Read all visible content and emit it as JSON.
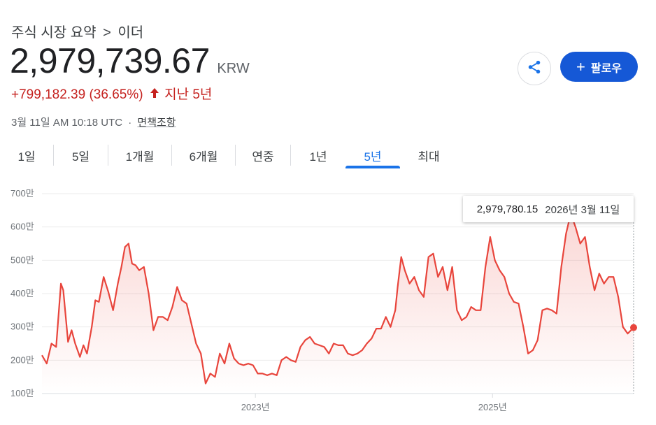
{
  "breadcrumb": {
    "root": "주식 시장 요약",
    "separator": ">",
    "current": "이더"
  },
  "quote": {
    "price": "2,979,739.67",
    "currency": "KRW",
    "change": "+799,182.39 (36.65%)",
    "period": "지난 5년",
    "timestamp": "3월 11일 AM 10:18 UTC",
    "disclaimer": "면책조항"
  },
  "buttons": {
    "follow_label": "팔로우"
  },
  "tabs": [
    {
      "label": "1일"
    },
    {
      "label": "5일"
    },
    {
      "label": "1개월"
    },
    {
      "label": "6개월"
    },
    {
      "label": "연중"
    },
    {
      "label": "1년"
    },
    {
      "label": "5년",
      "active": true
    },
    {
      "label": "최대"
    }
  ],
  "tooltip": {
    "value": "2,979,780.15",
    "date": "2026년 3월 11일"
  },
  "colors": {
    "line": "#e8453c",
    "accent": "#1a73e8",
    "follow_bg": "#1558d6",
    "down": "#c5221f"
  },
  "chart_data": {
    "type": "area",
    "yticks": [
      "700만",
      "600만",
      "500만",
      "400만",
      "300만",
      "200만",
      "100만"
    ],
    "ytick_values": [
      7000000,
      6000000,
      5000000,
      4000000,
      3000000,
      2000000,
      1000000
    ],
    "xticks": [
      "2023년",
      "2025년"
    ],
    "xtick_values": [
      2023.0,
      2025.0
    ],
    "xlim": [
      2021.2,
      2026.19
    ],
    "ylim": [
      1000000,
      7000000
    ],
    "grid": true,
    "series": [
      {
        "x": [
          2021.2,
          2021.24,
          2021.28,
          2021.32,
          2021.36,
          2021.38,
          2021.42,
          2021.45,
          2021.48,
          2021.52,
          2021.55,
          2021.58,
          2021.62,
          2021.65,
          2021.68,
          2021.72,
          2021.76,
          2021.8,
          2021.84,
          2021.87,
          2021.9,
          2021.93,
          2021.96,
          2021.99,
          2022.02,
          2022.06,
          2022.1,
          2022.14,
          2022.18,
          2022.22,
          2022.26,
          2022.3,
          2022.34,
          2022.38,
          2022.42,
          2022.46,
          2022.5,
          2022.54,
          2022.58,
          2022.62,
          2022.66,
          2022.7,
          2022.74,
          2022.78,
          2022.82,
          2022.86,
          2022.9,
          2022.94,
          2022.98,
          2023.02,
          2023.06,
          2023.1,
          2023.14,
          2023.18,
          2023.22,
          2023.26,
          2023.3,
          2023.34,
          2023.38,
          2023.42,
          2023.46,
          2023.5,
          2023.54,
          2023.58,
          2023.62,
          2023.66,
          2023.7,
          2023.74,
          2023.78,
          2023.82,
          2023.86,
          2023.9,
          2023.94,
          2023.98,
          2024.02,
          2024.06,
          2024.1,
          2024.14,
          2024.18,
          2024.2,
          2024.23,
          2024.26,
          2024.3,
          2024.34,
          2024.38,
          2024.42,
          2024.46,
          2024.5,
          2024.54,
          2024.58,
          2024.62,
          2024.66,
          2024.7,
          2024.74,
          2024.78,
          2024.82,
          2024.86,
          2024.9,
          2024.94,
          2024.98,
          2025.02,
          2025.06,
          2025.1,
          2025.14,
          2025.18,
          2025.22,
          2025.26,
          2025.3,
          2025.34,
          2025.38,
          2025.42,
          2025.46,
          2025.5,
          2025.54,
          2025.58,
          2025.62,
          2025.66,
          2025.7,
          2025.74,
          2025.78,
          2025.82,
          2025.86,
          2025.9,
          2025.94,
          2025.98,
          2026.02,
          2026.06,
          2026.1,
          2026.14,
          2026.19
        ],
        "y": [
          2150000,
          1900000,
          2500000,
          2400000,
          4300000,
          4100000,
          2550000,
          2900000,
          2500000,
          2100000,
          2450000,
          2200000,
          3000000,
          3800000,
          3750000,
          4500000,
          4050000,
          3500000,
          4300000,
          4800000,
          5400000,
          5500000,
          4900000,
          4850000,
          4700000,
          4800000,
          4000000,
          2900000,
          3300000,
          3300000,
          3200000,
          3600000,
          4200000,
          3800000,
          3700000,
          3100000,
          2500000,
          2200000,
          1300000,
          1600000,
          1500000,
          2200000,
          1900000,
          2500000,
          2050000,
          1900000,
          1850000,
          1900000,
          1850000,
          1600000,
          1600000,
          1550000,
          1600000,
          1550000,
          2000000,
          2100000,
          2000000,
          1950000,
          2400000,
          2600000,
          2700000,
          2500000,
          2450000,
          2400000,
          2200000,
          2500000,
          2450000,
          2450000,
          2200000,
          2150000,
          2200000,
          2300000,
          2500000,
          2650000,
          2950000,
          2950000,
          3300000,
          3000000,
          3500000,
          4200000,
          5100000,
          4700000,
          4300000,
          4500000,
          4100000,
          3900000,
          5100000,
          5200000,
          4500000,
          4800000,
          4100000,
          4800000,
          3500000,
          3200000,
          3300000,
          3600000,
          3500000,
          3500000,
          4800000,
          5700000,
          5000000,
          4700000,
          4500000,
          4000000,
          3750000,
          3700000,
          3000000,
          2200000,
          2300000,
          2600000,
          3500000,
          3550000,
          3500000,
          3400000,
          4800000,
          5800000,
          6400000,
          6000000,
          5500000,
          5700000,
          4800000,
          4100000,
          4600000,
          4300000,
          4500000,
          4500000,
          3900000,
          3000000,
          2800000,
          2979780
        ]
      }
    ]
  }
}
